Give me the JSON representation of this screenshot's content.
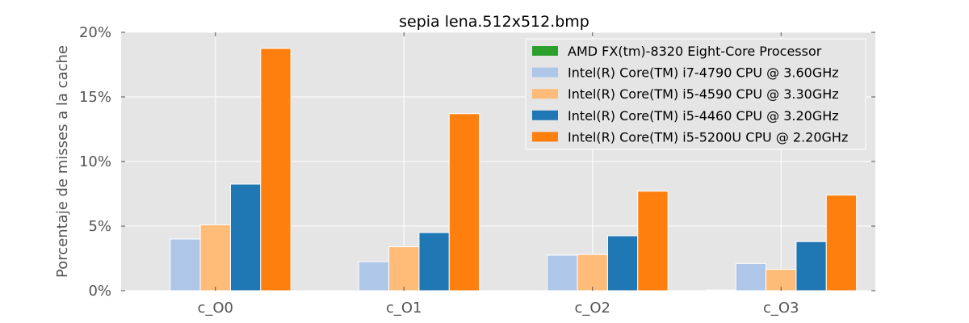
{
  "chart_data": {
    "type": "bar",
    "title": "sepia lena.512x512.bmp",
    "ylabel": "Porcentaje de misses a la cache",
    "xlabel": "",
    "categories": [
      "c_O0",
      "c_O1",
      "c_O2",
      "c_O3"
    ],
    "ylim": [
      0,
      20
    ],
    "yticks": [
      0,
      5,
      10,
      15,
      20
    ],
    "ytick_labels": [
      "0%",
      "5%",
      "10%",
      "15%",
      "20%"
    ],
    "grid": true,
    "legend_position": "top-right",
    "series": [
      {
        "name": "AMD FX(tm)-8320 Eight-Core Processor",
        "color": "#2ca02c",
        "values": [
          0,
          0,
          0,
          0.05
        ]
      },
      {
        "name": "Intel(R) Core(TM) i7-4790 CPU @ 3.60GHz",
        "color": "#aec7e8",
        "values": [
          4.0,
          2.25,
          2.75,
          2.1
        ]
      },
      {
        "name": "Intel(R) Core(TM) i5-4590 CPU @ 3.30GHz",
        "color": "#ffbb78",
        "values": [
          5.1,
          3.4,
          2.8,
          1.65
        ]
      },
      {
        "name": "Intel(R) Core(TM) i5-4460  CPU @ 3.20GHz",
        "color": "#1f77b4",
        "values": [
          8.25,
          4.5,
          4.25,
          3.8
        ]
      },
      {
        "name": "Intel(R) Core(TM) i5-5200U CPU @ 2.20GHz",
        "color": "#ff7f0e",
        "values": [
          18.75,
          13.7,
          7.7,
          7.4
        ]
      }
    ]
  }
}
